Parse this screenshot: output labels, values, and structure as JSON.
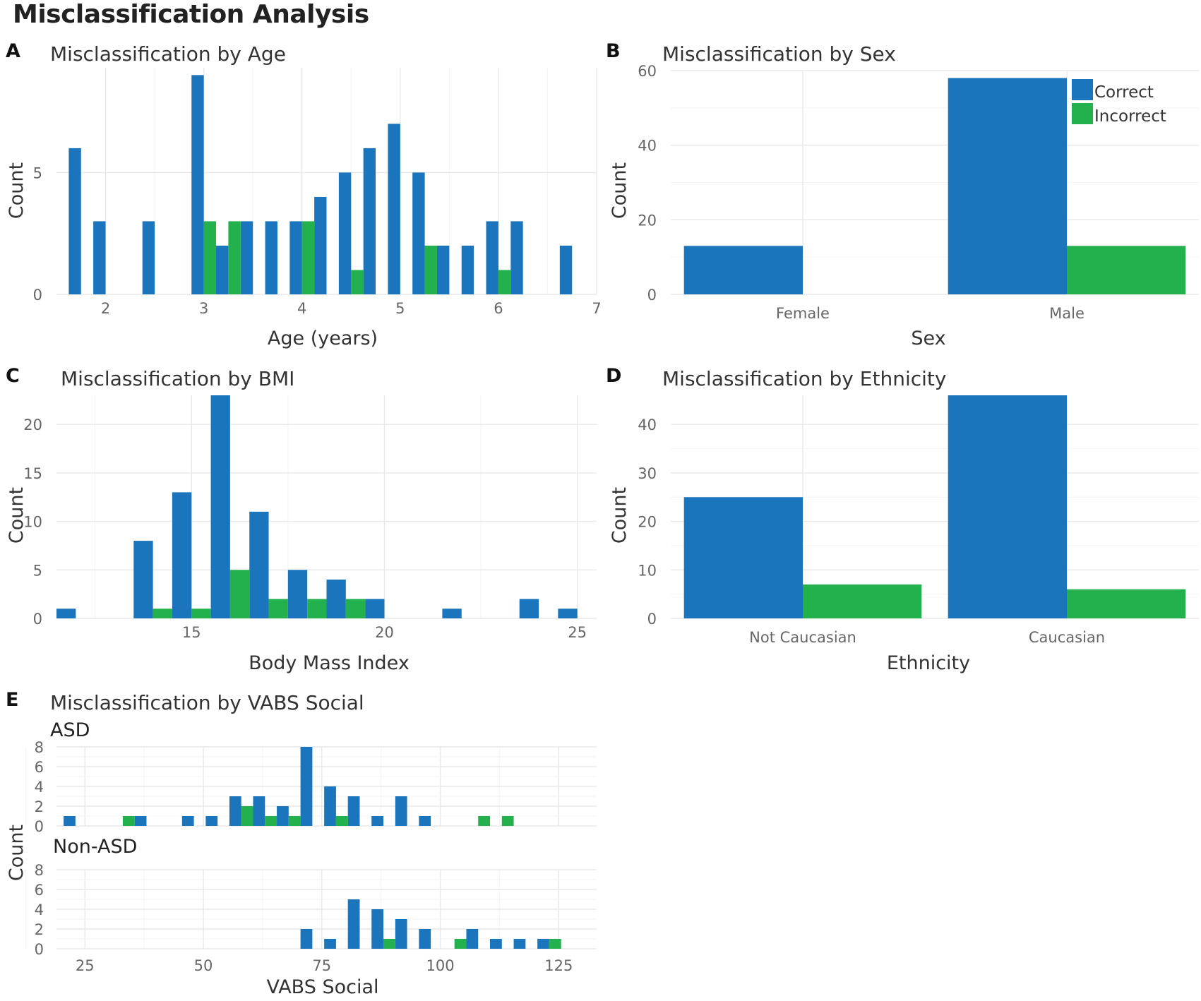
{
  "title": "Misclassification Analysis",
  "colors": {
    "correct": "#1b75bc",
    "incorrect": "#22b14c"
  },
  "legend": {
    "correct": "Correct",
    "incorrect": "Incorrect",
    "placement": "top-right of panel B"
  },
  "chart_data": [
    {
      "panel": "A",
      "type": "bar",
      "title": "Misclassification by Age",
      "xlabel": "Age (years)",
      "ylabel": "Count",
      "xlim": [
        1.5,
        7
      ],
      "ylim": [
        0,
        9.3
      ],
      "xticks": [
        2,
        3,
        4,
        5,
        6,
        7
      ],
      "yticks": [
        0,
        5
      ],
      "bin_width": 0.25,
      "series": [
        {
          "name": "Correct",
          "x": [
            1.75,
            2.0,
            2.5,
            3.0,
            3.25,
            3.5,
            3.75,
            4.0,
            4.25,
            4.5,
            4.75,
            5.0,
            5.25,
            5.5,
            5.75,
            6.0,
            6.25,
            6.75
          ],
          "values": [
            6,
            3,
            3,
            9,
            2,
            3,
            3,
            3,
            4,
            5,
            6,
            7,
            5,
            2,
            2,
            3,
            3,
            2
          ]
        },
        {
          "name": "Incorrect",
          "x": [
            3.0,
            3.25,
            4.0,
            4.5,
            5.25,
            6.0
          ],
          "values": [
            3,
            3,
            3,
            1,
            2,
            1
          ]
        }
      ]
    },
    {
      "panel": "B",
      "type": "bar",
      "title": "Misclassification by Sex",
      "xlabel": "Sex",
      "ylabel": "Count",
      "categories": [
        "Female",
        "Male"
      ],
      "ylim": [
        0,
        60
      ],
      "yticks": [
        0,
        20,
        40,
        60
      ],
      "series": [
        {
          "name": "Correct",
          "values": [
            13,
            58
          ]
        },
        {
          "name": "Incorrect",
          "values": [
            0,
            13
          ]
        }
      ]
    },
    {
      "panel": "C",
      "type": "bar",
      "title": "Misclassification by BMI",
      "xlabel": "Body Mass Index",
      "ylabel": "Count",
      "xlim": [
        11.5,
        25.5
      ],
      "ylim": [
        0,
        23
      ],
      "xticks": [
        15,
        20,
        25
      ],
      "yticks": [
        0,
        5,
        10,
        15,
        20
      ],
      "bin_width": 1,
      "series": [
        {
          "name": "Correct",
          "x": [
            12,
            14,
            15,
            16,
            17,
            18,
            19,
            20,
            22,
            24,
            25
          ],
          "values": [
            1,
            8,
            13,
            23,
            11,
            5,
            4,
            2,
            1,
            2,
            1
          ]
        },
        {
          "name": "Incorrect",
          "x": [
            14,
            15,
            16,
            17,
            18,
            19
          ],
          "values": [
            1,
            1,
            5,
            2,
            2,
            2
          ]
        }
      ]
    },
    {
      "panel": "D",
      "type": "bar",
      "title": "Misclassification by Ethnicity",
      "xlabel": "Ethnicity",
      "ylabel": "Count",
      "categories": [
        "Not Caucasian",
        "Caucasian"
      ],
      "ylim": [
        0,
        46
      ],
      "yticks": [
        0,
        10,
        20,
        30,
        40
      ],
      "series": [
        {
          "name": "Correct",
          "values": [
            25,
            46
          ]
        },
        {
          "name": "Incorrect",
          "values": [
            7,
            6
          ]
        }
      ]
    },
    {
      "panel": "E",
      "type": "bar",
      "title": "Misclassification by VABS Social",
      "xlabel": "VABS Social",
      "ylabel": "Count",
      "xlim": [
        19,
        133
      ],
      "xticks": [
        25,
        50,
        75,
        100,
        125
      ],
      "yticks": [
        0,
        2,
        4,
        6,
        8
      ],
      "ylim": [
        0,
        8
      ],
      "bin_width": 5,
      "facets": [
        {
          "label": "ASD",
          "series": [
            {
              "name": "Correct",
              "x": [
                23,
                38,
                48,
                53,
                58,
                63,
                68,
                73,
                78,
                83,
                88,
                93,
                98
              ],
              "values": [
                1,
                1,
                1,
                1,
                3,
                3,
                2,
                8,
                4,
                3,
                1,
                3,
                1
              ]
            },
            {
              "name": "Incorrect",
              "x": [
                33,
                58,
                63,
                68,
                78,
                108,
                113
              ],
              "values": [
                1,
                2,
                1,
                1,
                1,
                1,
                1
              ]
            }
          ]
        },
        {
          "label": "Non-ASD",
          "series": [
            {
              "name": "Correct",
              "x": [
                73,
                78,
                83,
                88,
                93,
                98,
                108,
                113,
                118,
                123
              ],
              "values": [
                2,
                1,
                5,
                4,
                3,
                2,
                2,
                1,
                1,
                1
              ]
            },
            {
              "name": "Incorrect",
              "x": [
                88,
                103,
                123
              ],
              "values": [
                1,
                1,
                1
              ]
            }
          ]
        }
      ]
    }
  ]
}
